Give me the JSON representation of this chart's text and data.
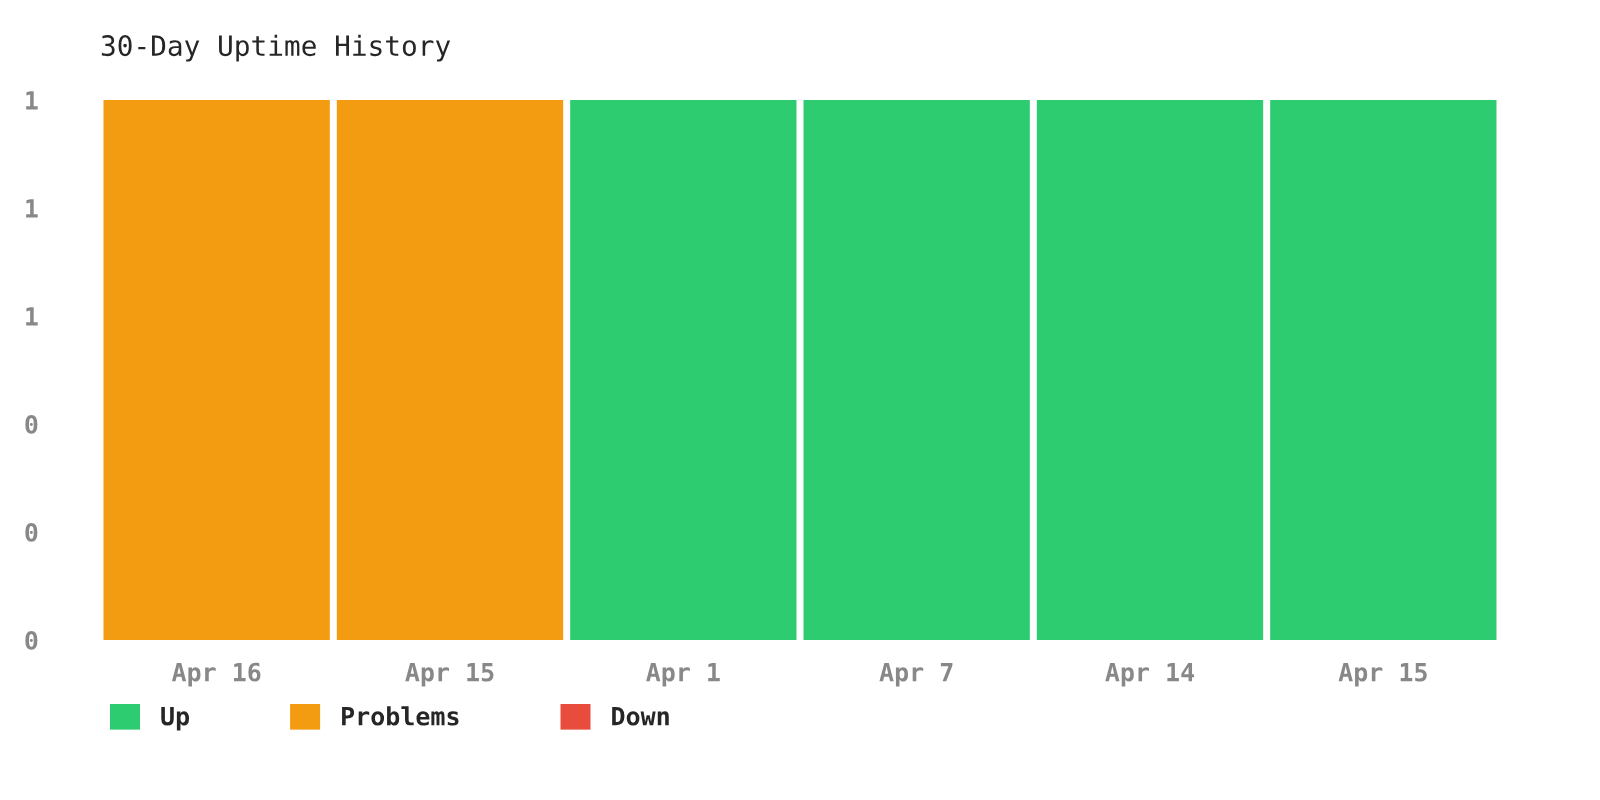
{
  "chart_data": {
    "type": "bar",
    "title": "30-Day Uptime History",
    "categories": [
      "Apr 16",
      "Apr 15",
      "Apr 1",
      "Apr 7",
      "Apr 14",
      "Apr 15"
    ],
    "series": [
      {
        "name": "Up",
        "color": "#2ecc71",
        "values": [
          0,
          0,
          1,
          1,
          1,
          1
        ]
      },
      {
        "name": "Problems",
        "color": "#f39c12",
        "values": [
          1,
          1,
          0,
          0,
          0,
          0
        ]
      },
      {
        "name": "Down",
        "color": "#e74c3c",
        "values": [
          0,
          0,
          0,
          0,
          0,
          0
        ]
      }
    ],
    "ylim": [
      0,
      1
    ],
    "yticks": [
      0,
      {
        "value": 0.2,
        "label": "0"
      },
      {
        "value": 0.4,
        "label": "0"
      },
      {
        "value": 0.6,
        "label": "1"
      },
      {
        "value": 0.8,
        "label": "1"
      },
      1
    ],
    "grid": false,
    "legend": "bottom left"
  }
}
